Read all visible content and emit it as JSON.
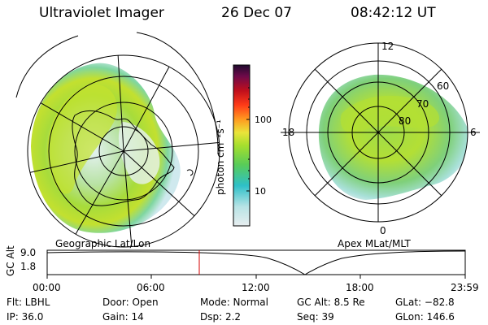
{
  "header": {
    "instrument": "Ultraviolet Imager",
    "date": "26 Dec 07",
    "time": "08:42:12 UT"
  },
  "left_panel": {
    "label": "Geographic Lat/Lon"
  },
  "right_panel": {
    "label": "Apex MLat/MLT",
    "mlt_labels": {
      "top": "12",
      "right": "6",
      "bottom": "0",
      "left": "18"
    },
    "lat_labels": [
      "60",
      "70",
      "80"
    ]
  },
  "colorbar": {
    "unit_label": "photon cm⁻²s⁻¹",
    "ticks": [
      "100",
      "10"
    ],
    "colors": [
      "#cfe6ea",
      "#27c3cc",
      "#6fd14a",
      "#aee02a",
      "#f6e23b",
      "#ff9a22",
      "#ff3a1a",
      "#c4101a",
      "#7d0a45",
      "#2a0a3a"
    ]
  },
  "timeline": {
    "ylabel": "GC Alt",
    "yticks": [
      "9.0",
      "1.8"
    ],
    "xticks": [
      "00:00",
      "06:00",
      "12:00",
      "18:00",
      "23:59"
    ]
  },
  "status": {
    "flt": "Flt: LBHL",
    "ip": "IP: 36.0",
    "door": "Door: Open",
    "gain": "Gain: 14",
    "mode": "Mode: Normal",
    "dsp": "Dsp:    2.2",
    "gcalt": "GC Alt: 8.5 Re",
    "seq": "Seq: 39",
    "glat": "GLat: −82.8",
    "glon": "GLon: 146.6"
  }
}
